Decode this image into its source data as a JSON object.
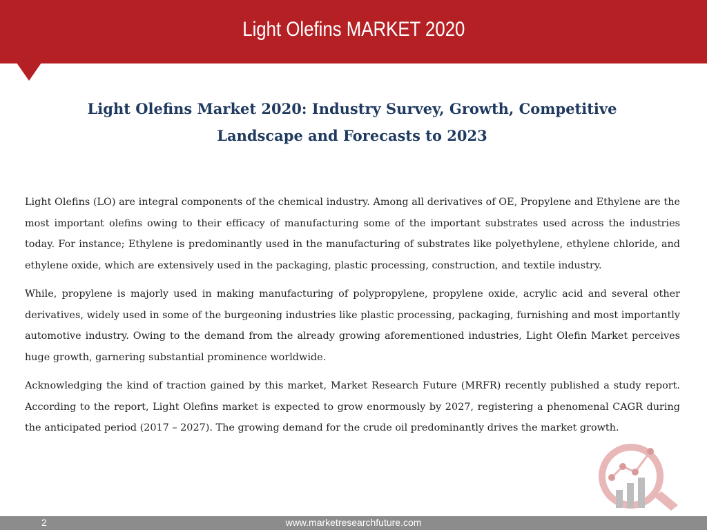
{
  "header": {
    "title": "Light Olefins MARKET 2020"
  },
  "subtitle": {
    "line1": "Light Olefins Market 2020: Industry Survey, Growth, Competitive",
    "line2": "Landscape and Forecasts to 2023"
  },
  "paragraphs": [
    "Light Olefins (LO) are integral components of the chemical industry. Among all derivatives of OE, Propylene and Ethylene are the most important olefins owing to their efficacy of manufacturing some of the important substrates used across the industries today. For instance; Ethylene is predominantly used in the manufacturing of substrates like polyethylene, ethylene chloride, and ethylene oxide, which are extensively used in the packaging, plastic processing, construction, and textile industry.",
    "While, propylene is majorly used in making manufacturing of polypropylene, propylene oxide, acrylic acid and several other derivatives, widely used in some of the burgeoning industries like plastic processing, packaging, furnishing and most importantly automotive industry. Owing to the demand from the already growing aforementioned industries, Light Olefin Market perceives huge growth, garnering substantial prominence worldwide.",
    "Acknowledging the kind of traction gained by this market, Market Research Future (MRFR) recently published a study report. According to the report, Light Olefins market is expected to grow enormously by 2027, registering a phenomenal CAGR during the anticipated period (2017 – 2027). The growing demand for the crude oil predominantly drives the market growth."
  ],
  "footer": {
    "page_number": "2",
    "url": "www.marketresearchfuture.com"
  },
  "colors": {
    "header": "#b52025",
    "subtitle": "#1f3a5f",
    "footer": "#8c8c8c",
    "logo_red": "#c62828",
    "logo_gray": "#a9a9a9"
  },
  "icons": {
    "logo": "magnifier-bar-chart-icon"
  }
}
